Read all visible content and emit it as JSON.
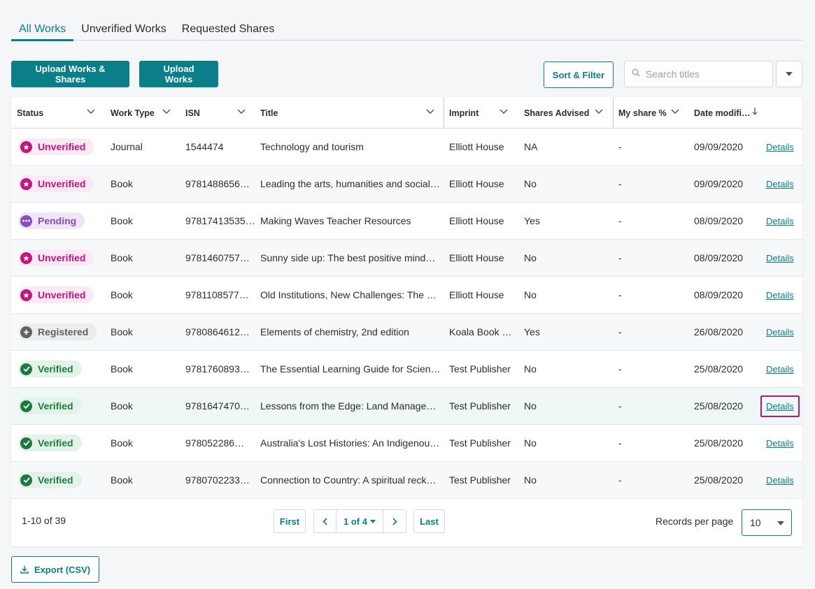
{
  "tabs": [
    {
      "label": "All Works",
      "active": true
    },
    {
      "label": "Unverified Works",
      "active": false
    },
    {
      "label": "Requested Shares",
      "active": false
    }
  ],
  "toolbar": {
    "upload_works_shares": "Upload Works & Shares",
    "upload_works": "Upload Works",
    "sort_filter": "Sort & Filter",
    "search_placeholder": "Search titles"
  },
  "table": {
    "columns": {
      "status": "Status",
      "work_type": "Work Type",
      "isn": "ISN",
      "title": "Title",
      "imprint": "Imprint",
      "shares_advised": "Shares Advised",
      "my_share": "My share %",
      "date_modified": "Date modifi…"
    },
    "rows": [
      {
        "status": "Unverified",
        "kind": "unverified",
        "work_type": "Journal",
        "isn": "1544474",
        "title": "Technology and tourism",
        "imprint": "Elliott House",
        "shares": "NA",
        "my_share": "-",
        "date": "09/09/2020",
        "action": "Details"
      },
      {
        "status": "Unverified",
        "kind": "unverified",
        "work_type": "Book",
        "isn": "9781488656…",
        "title": "Leading the arts, humanities and social…",
        "imprint": "Elliott House",
        "shares": "No",
        "my_share": "-",
        "date": "09/09/2020",
        "action": "Details"
      },
      {
        "status": "Pending",
        "kind": "pending",
        "work_type": "Book",
        "isn": "97817413535…",
        "title": "Making Waves Teacher Resources",
        "imprint": "Elliott House",
        "shares": "Yes",
        "my_share": "-",
        "date": "08/09/2020",
        "action": "Details"
      },
      {
        "status": "Unverified",
        "kind": "unverified",
        "work_type": "Book",
        "isn": "9781460757…",
        "title": "Sunny side up: The best positive mind…",
        "imprint": "Elliott House",
        "shares": "No",
        "my_share": "-",
        "date": "08/09/2020",
        "action": "Details"
      },
      {
        "status": "Unverified",
        "kind": "unverified",
        "work_type": "Book",
        "isn": "9781108577…",
        "title": "Old Institutions, New Challenges: The …",
        "imprint": "Elliott House",
        "shares": "No",
        "my_share": "-",
        "date": "08/09/2020",
        "action": "Details"
      },
      {
        "status": "Registered",
        "kind": "registered",
        "work_type": "Book",
        "isn": "9780864612…",
        "title": "Elements of chemistry, 2nd edition",
        "imprint": "Koala Book …",
        "shares": "Yes",
        "my_share": "-",
        "date": "26/08/2020",
        "action": "Details"
      },
      {
        "status": "Verified",
        "kind": "verified",
        "work_type": "Book",
        "isn": "9781760893…",
        "title": "The Essential Learning Guide for Scien…",
        "imprint": "Test Publisher",
        "shares": "No",
        "my_share": "-",
        "date": "25/08/2020",
        "action": "Details"
      },
      {
        "status": "Verified",
        "kind": "verified",
        "work_type": "Book",
        "isn": "9781647470…",
        "title": "Lessons from the Edge: Land Manage…",
        "imprint": "Test Publisher",
        "shares": "No",
        "my_share": "-",
        "date": "25/08/2020",
        "action": "Details"
      },
      {
        "status": "Verified",
        "kind": "verified",
        "work_type": "Book",
        "isn": "978052286…",
        "title": "Australia's Lost Histories: An Indigenou…",
        "imprint": "Test Publisher",
        "shares": "No",
        "my_share": "-",
        "date": "25/08/2020",
        "action": "Details"
      },
      {
        "status": "Verified",
        "kind": "verified",
        "work_type": "Book",
        "isn": "9780702233…",
        "title": "Connection to Country: A spiritual reck…",
        "imprint": "Test Publisher",
        "shares": "No",
        "my_share": "-",
        "date": "25/08/2020",
        "action": "Details"
      }
    ]
  },
  "pagination": {
    "range_text": "1-10 of 39",
    "first": "First",
    "page_text": "1 of 4",
    "last": "Last",
    "records_label": "Records per page",
    "records_value": "10"
  },
  "export_label": "Export (CSV)",
  "colors": {
    "accent": "#0a7f8a",
    "unverified": "#c4157f",
    "pending": "#8a4bbf",
    "registered": "#616161",
    "verified": "#1d7a3d",
    "focus": "#b5177f"
  },
  "icons": {
    "unverified": "star-icon",
    "pending": "ellipsis-icon",
    "registered": "plus-icon",
    "verified": "check-icon"
  }
}
